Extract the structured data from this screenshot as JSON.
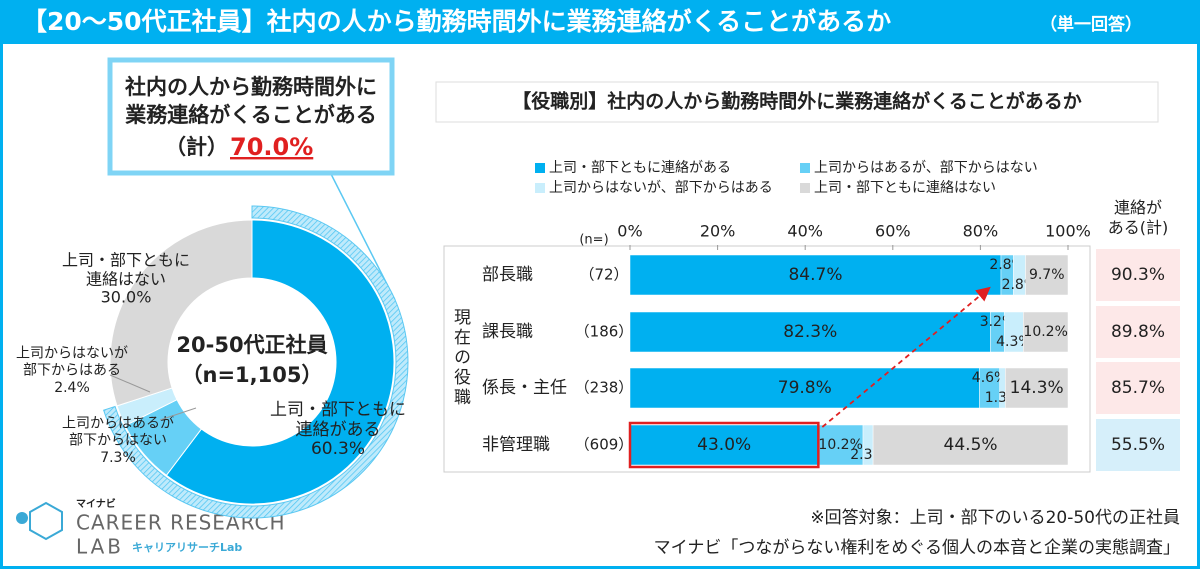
{
  "header": {
    "title": "【20～50代正社員】社内の人から勤務時間外に業務連絡がくることがあるか",
    "note": "（単一回答）"
  },
  "callout": {
    "lines": [
      "社内の人から勤務時間外に",
      "業務連絡がくることがある"
    ],
    "prefix": "（計）",
    "total": "70.0%"
  },
  "chart_data": [
    {
      "type": "pie",
      "center_lines": [
        "20-50代正社員",
        "（n=1,105）"
      ],
      "categories": [
        "上司・部下ともに\n連絡がある",
        "上司からはあるが\n部下からはない",
        "上司からはないが\n部下からはある",
        "上司・部下ともに\n連絡はない"
      ],
      "values": [
        60.3,
        7.3,
        2.4,
        30.0
      ],
      "value_labels": [
        "60.3%",
        "7.3%",
        "2.4%",
        "30.0%"
      ],
      "colors": [
        "#00b0f0",
        "#66d0f6",
        "#c9eefc",
        "#d9d9d9"
      ]
    },
    {
      "type": "stacked_bar",
      "title": "【役職別】社内の人から勤務時間外に業務連絡がくることがあるか",
      "y_label": "現在の役職",
      "categories": [
        "部長職",
        "課長職",
        "係長・主任",
        "非管理職"
      ],
      "n_label": "(n=)",
      "n": [
        "（72）",
        "（186）",
        "（238）",
        "（609）"
      ],
      "series": [
        {
          "name": "上司・部下ともに連絡がある",
          "color": "#00b0f0",
          "values": [
            84.7,
            82.3,
            79.8,
            43.0
          ],
          "value_labels": [
            "84.7%",
            "82.3%",
            "79.8%",
            "43.0%"
          ]
        },
        {
          "name": "上司からはあるが、部下からはない",
          "color": "#66d0f6",
          "values": [
            2.8,
            3.2,
            4.6,
            10.2
          ],
          "value_labels": [
            "2.8%",
            "3.2%",
            "4.6%",
            "10.2%"
          ]
        },
        {
          "name": "上司からはないが、部下からはある",
          "color": "#c9eefc",
          "values": [
            2.8,
            4.3,
            1.3,
            2.3
          ],
          "value_labels": [
            "2.8%",
            "4.3%",
            "1.3%",
            "2.3%"
          ]
        },
        {
          "name": "上司・部下ともに連絡はない",
          "color": "#d9d9d9",
          "values": [
            9.7,
            10.2,
            14.3,
            44.5
          ],
          "value_labels": [
            "9.7%",
            "10.2%",
            "14.3%",
            "44.5%"
          ]
        }
      ],
      "xlim": [
        0,
        100
      ],
      "xticks": [
        {
          "value": 0,
          "label": "0%"
        },
        {
          "value": 20,
          "label": "20%"
        },
        {
          "value": 40,
          "label": "40%"
        },
        {
          "value": 60,
          "label": "60%"
        },
        {
          "value": 80,
          "label": "80%"
        },
        {
          "value": 100,
          "label": "100%"
        }
      ],
      "legend": "top",
      "totals": {
        "label": "連絡が\nある(計)",
        "value_labels": [
          "90.3%",
          "89.8%",
          "85.7%",
          "55.5%"
        ]
      }
    }
  ],
  "footer": {
    "note": "※回答対象：上司・部下のいる20-50代の正社員",
    "source": "マイナビ「つながらない権利をめぐる個人の本音と企業の実態調査」"
  },
  "logo": {
    "brand": "マイナビ",
    "line1": "CAREER RESEARCH",
    "line2": "LAB",
    "sub": "キャリアリサーチLab"
  }
}
